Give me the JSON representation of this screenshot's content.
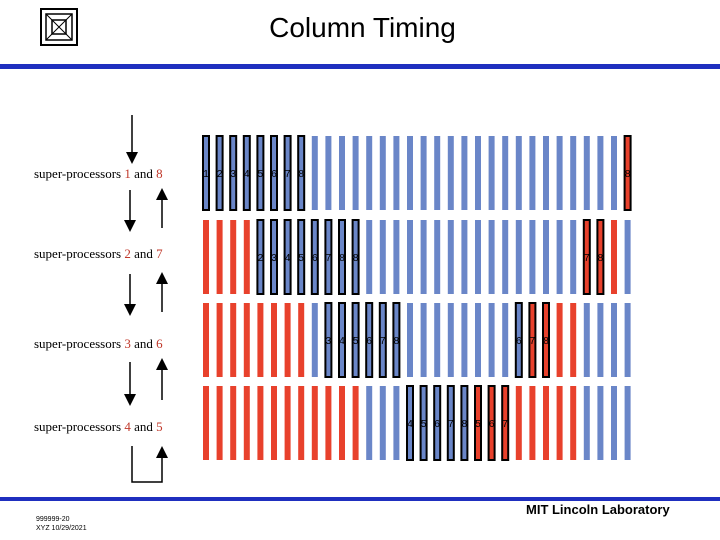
{
  "title": "Column Timing",
  "footer": {
    "doc_id": "999999-20",
    "author_date": "XYZ 10/29/2021",
    "org": "MIT Lincoln Laboratory"
  },
  "colors": {
    "blue": "#6a86c8",
    "red": "#e8412c",
    "outline": "#000000",
    "rule": "#1f2fbf"
  },
  "rows": [
    {
      "prefix": "super-processors ",
      "a": "1",
      "mid": " and ",
      "b": "8",
      "pattern": "bbbbbbbbbbbbbbbbbbbbbbbbbbbbbbbr",
      "active": [
        0,
        1,
        2,
        3,
        4,
        5,
        6,
        7,
        31
      ],
      "labels": [
        "1",
        "2",
        "3",
        "4",
        "5",
        "6",
        "7",
        "8",
        "8"
      ]
    },
    {
      "prefix": "super-processors ",
      "a": "2",
      "mid": " and ",
      "b": "7",
      "pattern": "rrrrbbbbbbbbbbbbbbbbbbbbbbbbrrrb",
      "active": [
        4,
        5,
        6,
        7,
        8,
        9,
        10,
        11,
        28,
        29
      ],
      "labels": [
        "2",
        "3",
        "4",
        "5",
        "6",
        "7",
        "8",
        "8",
        "7",
        "8"
      ]
    },
    {
      "prefix": "super-processors ",
      "a": "3",
      "mid": " and ",
      "b": "6",
      "pattern": "rrrrrrrrbbbbbbbbbbbbbbbbrrrrbbbb",
      "active": [
        9,
        10,
        11,
        12,
        13,
        14,
        23,
        24,
        25
      ],
      "labels": [
        "3",
        "4",
        "5",
        "6",
        "7",
        "8",
        "6",
        "7",
        "8"
      ]
    },
    {
      "prefix": "super-processors ",
      "a": "4",
      "mid": " and ",
      "b": "5",
      "pattern": "rrrrrrrrrrrrbbbbbbbbrrrrrrrrbbbb",
      "active": [
        15,
        16,
        17,
        18,
        19,
        20,
        21,
        22
      ],
      "labels": [
        "4",
        "5",
        "6",
        "7",
        "8",
        "5",
        "6",
        "7"
      ]
    }
  ]
}
